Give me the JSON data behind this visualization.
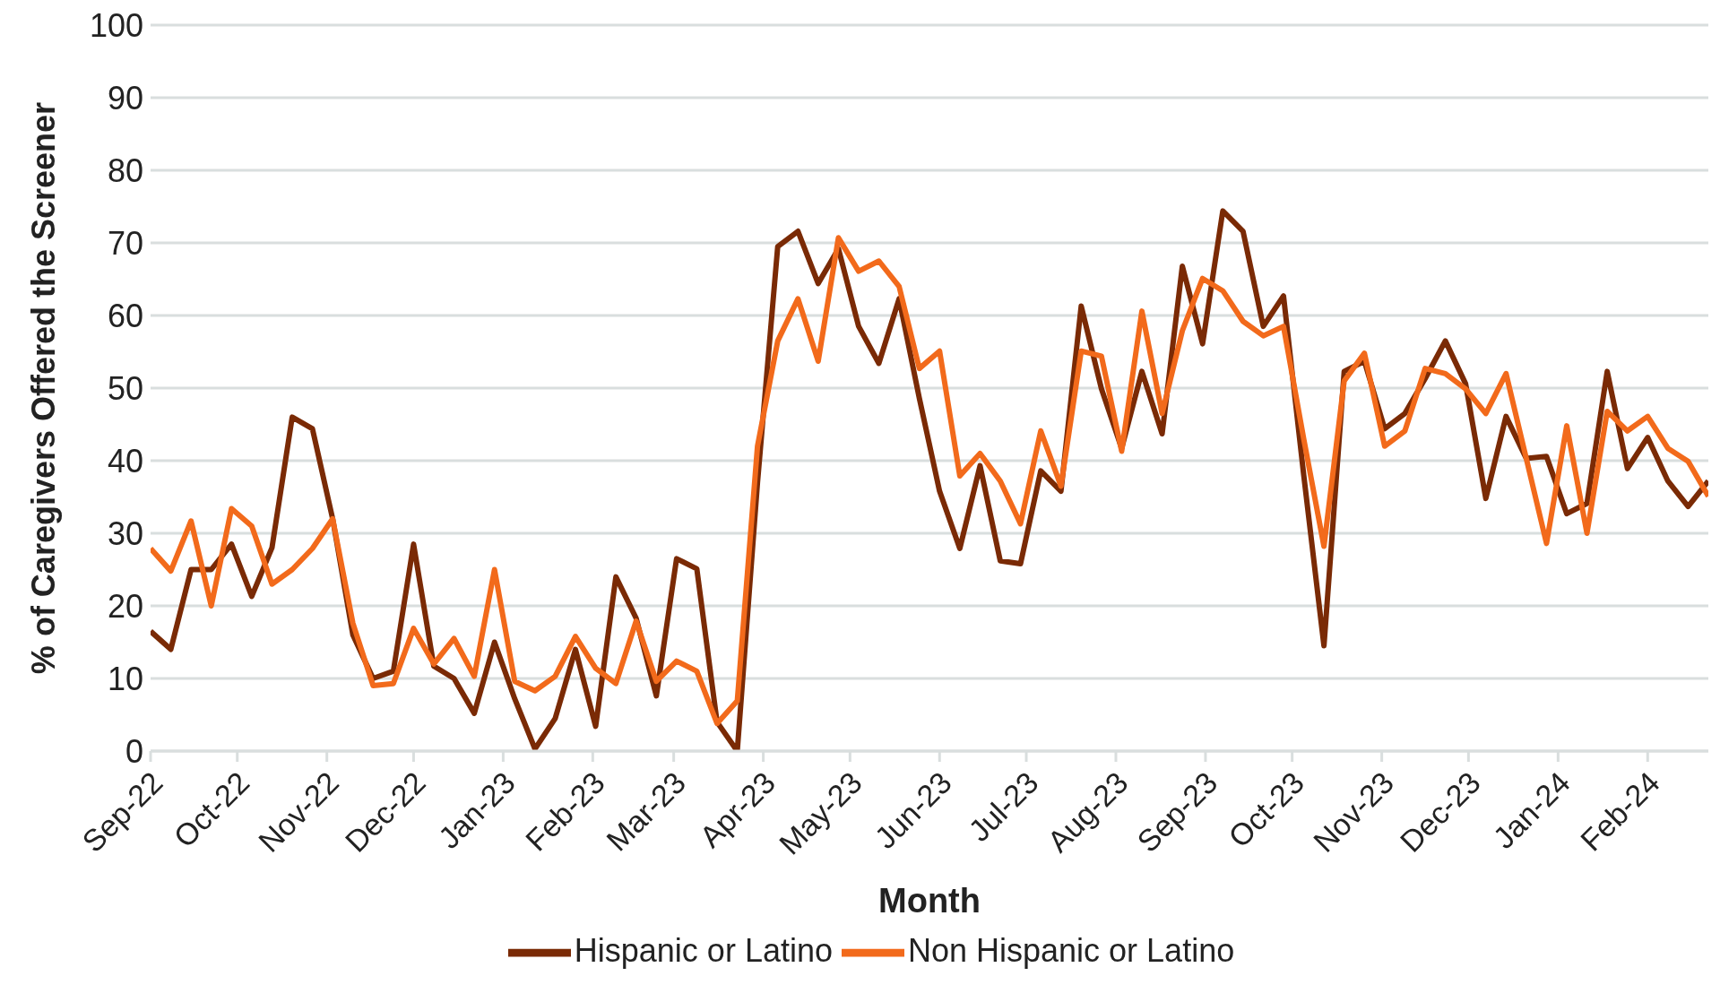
{
  "chart_data": {
    "type": "line",
    "xlabel": "Month",
    "ylabel": "% of Caregivers Offered the Screener",
    "x": [
      "2022-09-01",
      "2022-09-08",
      "2022-09-15",
      "2022-09-22",
      "2022-09-29",
      "2022-10-06",
      "2022-10-13",
      "2022-10-20",
      "2022-10-27",
      "2022-11-03",
      "2022-11-10",
      "2022-11-17",
      "2022-11-24",
      "2022-12-01",
      "2022-12-08",
      "2022-12-15",
      "2022-12-22",
      "2022-12-29",
      "2023-01-05",
      "2023-01-12",
      "2023-01-19",
      "2023-01-26",
      "2023-02-02",
      "2023-02-09",
      "2023-02-16",
      "2023-02-23",
      "2023-03-02",
      "2023-03-09",
      "2023-03-16",
      "2023-03-23",
      "2023-03-30",
      "2023-04-06",
      "2023-04-13",
      "2023-04-20",
      "2023-04-27",
      "2023-05-04",
      "2023-05-11",
      "2023-05-18",
      "2023-05-25",
      "2023-06-01",
      "2023-06-08",
      "2023-06-15",
      "2023-06-22",
      "2023-06-29",
      "2023-07-06",
      "2023-07-13",
      "2023-07-20",
      "2023-07-27",
      "2023-08-03",
      "2023-08-10",
      "2023-08-17",
      "2023-08-24",
      "2023-08-31",
      "2023-09-07",
      "2023-09-14",
      "2023-09-21",
      "2023-09-28",
      "2023-10-05",
      "2023-10-12",
      "2023-10-19",
      "2023-10-26",
      "2023-11-02",
      "2023-11-09",
      "2023-11-16",
      "2023-11-23",
      "2023-11-30",
      "2023-12-07",
      "2023-12-14",
      "2023-12-21",
      "2023-12-28",
      "2024-01-04",
      "2024-01-11",
      "2024-01-18",
      "2024-01-25",
      "2024-02-01",
      "2024-02-08",
      "2024-02-15",
      "2024-02-22"
    ],
    "series": [
      {
        "name": "Hispanic or Latino",
        "color": "#7a2a05",
        "values": [
          16.5,
          14,
          25,
          25,
          28.5,
          21.3,
          28,
          46,
          44.4,
          32,
          16,
          10,
          11,
          28.5,
          11.7,
          10,
          5.2,
          15,
          7.2,
          0.3,
          4.5,
          14,
          3.4,
          24,
          18.3,
          7.6,
          26.5,
          25.1,
          4,
          0,
          37,
          69.5,
          71.6,
          64.4,
          69.2,
          58.5,
          53.4,
          62.3,
          48.6,
          35.8,
          27.9,
          39.3,
          26.2,
          25.8,
          38.6,
          35.8,
          61.3,
          49.9,
          41.7,
          52.3,
          43.7,
          66.8,
          56.1,
          74.4,
          71.6,
          58.5,
          62.7,
          38,
          14.5,
          52.3,
          53.7,
          44.4,
          46.5,
          51.3,
          56.5,
          50.6,
          34.8,
          46.1,
          40.3,
          40.6,
          32.7,
          34.1,
          52.3,
          38.9,
          43.2,
          37.2,
          33.7,
          37.2
        ]
      },
      {
        "name": "Non Hispanic or Latino",
        "color": "#f26a1b",
        "values": [
          27.9,
          24.8,
          31.7,
          20,
          33.4,
          31,
          23,
          25,
          27.9,
          32,
          17.6,
          9,
          9.3,
          16.9,
          12,
          15.5,
          10.3,
          25,
          9.6,
          8.3,
          10.3,
          15.8,
          11.4,
          9.3,
          17.9,
          9.6,
          12.4,
          11,
          3.8,
          6.9,
          42,
          56.5,
          62.3,
          53.7,
          70.7,
          66.1,
          67.5,
          64,
          52.7,
          55.1,
          37.9,
          41,
          37.2,
          31.3,
          44.1,
          36.5,
          55.1,
          54.4,
          41.3,
          60.6,
          46.5,
          57.9,
          65.1,
          63.4,
          59.2,
          57.2,
          58.5,
          43,
          28.2,
          51,
          54.8,
          42,
          44.1,
          52.7,
          52,
          49.9,
          46.5,
          52,
          40.3,
          28.6,
          44.8,
          30,
          46.8,
          44.1,
          46.1,
          41.7,
          39.9,
          35.1
        ]
      }
    ],
    "xlim": [
      "2022-09-01",
      "2024-02-22"
    ],
    "xticks": [
      {
        "value": "2022-09-01",
        "label": "Sep-22"
      },
      {
        "value": "2022-10-01",
        "label": "Oct-22"
      },
      {
        "value": "2022-11-01",
        "label": "Nov-22"
      },
      {
        "value": "2022-12-01",
        "label": "Dec-22"
      },
      {
        "value": "2023-01-01",
        "label": "Jan-23"
      },
      {
        "value": "2023-02-01",
        "label": "Feb-23"
      },
      {
        "value": "2023-03-01",
        "label": "Mar-23"
      },
      {
        "value": "2023-04-01",
        "label": "Apr-23"
      },
      {
        "value": "2023-05-01",
        "label": "May-23"
      },
      {
        "value": "2023-06-01",
        "label": "Jun-23"
      },
      {
        "value": "2023-07-01",
        "label": "Jul-23"
      },
      {
        "value": "2023-08-01",
        "label": "Aug-23"
      },
      {
        "value": "2023-09-01",
        "label": "Sep-23"
      },
      {
        "value": "2023-10-01",
        "label": "Oct-23"
      },
      {
        "value": "2023-11-01",
        "label": "Nov-23"
      },
      {
        "value": "2023-12-01",
        "label": "Dec-23"
      },
      {
        "value": "2024-01-01",
        "label": "Jan-24"
      },
      {
        "value": "2024-02-01",
        "label": "Feb-24"
      }
    ],
    "ylim": [
      0,
      100
    ],
    "yticks": [
      0,
      10,
      20,
      30,
      40,
      50,
      60,
      70,
      80,
      90,
      100
    ],
    "grid": "y",
    "legend": "bottom",
    "marker": "none",
    "line_style": "solid"
  }
}
